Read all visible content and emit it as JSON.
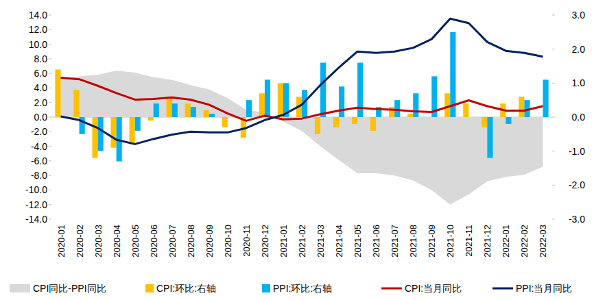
{
  "chart_data": {
    "type": "combo",
    "categories": [
      "2020-01",
      "2020-02",
      "2020-03",
      "2020-04",
      "2020-05",
      "2020-06",
      "2020-07",
      "2020-08",
      "2020-09",
      "2020-10",
      "2020-11",
      "2020-12",
      "2021-01",
      "2021-02",
      "2021-03",
      "2021-04",
      "2021-05",
      "2021-06",
      "2021-07",
      "2021-08",
      "2021-09",
      "2021-10",
      "2021-11",
      "2021-12",
      "2022-01",
      "2022-02",
      "2022-03"
    ],
    "ylim": [
      -14,
      14
    ],
    "yticks": [
      {
        "value": -14,
        "label": "-14.0"
      },
      {
        "value": -12,
        "label": "-12.0"
      },
      {
        "value": -10,
        "label": "-10.0"
      },
      {
        "value": -8,
        "label": "-8.0"
      },
      {
        "value": -6,
        "label": "-6.0"
      },
      {
        "value": -4,
        "label": "-4.0"
      },
      {
        "value": -2,
        "label": "-2.0"
      },
      {
        "value": 0,
        "label": "0.0"
      },
      {
        "value": 2,
        "label": "2.0"
      },
      {
        "value": 4,
        "label": "4.0"
      },
      {
        "value": 6,
        "label": "6.0"
      },
      {
        "value": 8,
        "label": "8.0"
      },
      {
        "value": 10,
        "label": "10.0"
      },
      {
        "value": 12,
        "label": "12.0"
      },
      {
        "value": 14,
        "label": "14.0"
      }
    ],
    "y2lim": [
      -3,
      3
    ],
    "y2ticks": [
      {
        "value": -3,
        "label": "-3.0"
      },
      {
        "value": -2,
        "label": "-2.0"
      },
      {
        "value": -1,
        "label": "-1.0"
      },
      {
        "value": 0,
        "label": "0.0"
      },
      {
        "value": 1,
        "label": "1.0"
      },
      {
        "value": 2,
        "label": "2.0"
      },
      {
        "value": 3,
        "label": "3.0"
      }
    ],
    "grid": false,
    "legend": "bottom",
    "series": [
      {
        "name": "CPI同比-PPI同比",
        "type": "area",
        "color": "#d9d9d9",
        "values": [
          5.3,
          5.6,
          5.8,
          6.4,
          6.1,
          5.5,
          5.1,
          4.4,
          3.8,
          2.6,
          1.0,
          0.6,
          -0.6,
          -1.9,
          -4.0,
          -5.9,
          -7.7,
          -7.7,
          -8.0,
          -8.7,
          -10.0,
          -12.0,
          -10.6,
          -8.8,
          -8.2,
          -7.9,
          -6.8
        ]
      },
      {
        "name": "CPI:环比:右轴",
        "type": "bar",
        "axis": "y2",
        "color": "#ffc000",
        "values": [
          1.4,
          0.8,
          -1.2,
          -0.9,
          -0.8,
          -0.1,
          0.6,
          0.4,
          0.2,
          -0.3,
          -0.6,
          0.7,
          1.0,
          0.6,
          -0.5,
          -0.3,
          -0.2,
          -0.4,
          0.3,
          0.1,
          0.0,
          0.7,
          0.4,
          -0.3,
          0.4,
          0.6,
          0.0
        ]
      },
      {
        "name": "PPI:环比:右轴",
        "type": "bar",
        "axis": "y2",
        "color": "#00b0f0",
        "values": [
          0.0,
          -0.5,
          -1.0,
          -1.3,
          -0.4,
          0.4,
          0.4,
          0.3,
          0.1,
          0.0,
          0.5,
          1.1,
          1.0,
          0.8,
          1.6,
          0.9,
          1.6,
          0.3,
          0.5,
          0.7,
          1.2,
          2.5,
          0.0,
          -1.2,
          -0.2,
          0.5,
          1.1
        ]
      },
      {
        "name": "CPI:当月同比",
        "type": "line",
        "color": "#c00000",
        "values": [
          5.4,
          5.2,
          4.3,
          3.3,
          2.4,
          2.5,
          2.7,
          2.4,
          1.7,
          0.5,
          -0.5,
          0.2,
          -0.3,
          -0.2,
          0.4,
          0.9,
          1.3,
          1.1,
          1.0,
          0.8,
          0.7,
          1.5,
          2.3,
          1.5,
          0.9,
          0.9,
          1.5
        ]
      },
      {
        "name": "PPI:当月同比",
        "type": "line",
        "color": "#002060",
        "values": [
          0.1,
          -0.4,
          -1.5,
          -3.1,
          -3.7,
          -3.0,
          -2.4,
          -2.0,
          -2.1,
          -2.1,
          -1.5,
          -0.4,
          0.3,
          1.7,
          4.4,
          6.8,
          9.0,
          8.8,
          9.0,
          9.5,
          10.7,
          13.5,
          12.9,
          10.3,
          9.1,
          8.8,
          8.3
        ]
      }
    ]
  }
}
